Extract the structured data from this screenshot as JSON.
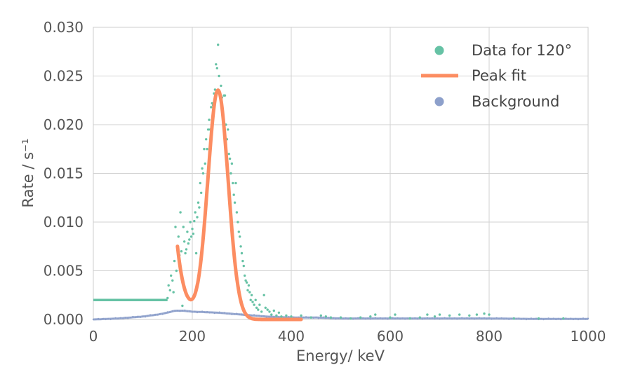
{
  "chart_data": {
    "type": "scatter",
    "xlabel": "Energy/ keV",
    "ylabel": "Rate / s⁻¹",
    "xlim": [
      0,
      1000
    ],
    "ylim": [
      0,
      0.03
    ],
    "xticks": [
      "0",
      "200",
      "400",
      "600",
      "800",
      "1000"
    ],
    "yticks": [
      "0.000",
      "0.005",
      "0.010",
      "0.015",
      "0.020",
      "0.025",
      "0.030"
    ],
    "grid": true,
    "legend_position": "top-right",
    "colors": {
      "data": "#66c2a5",
      "fit": "#fc8d62",
      "background": "#8da0cb",
      "grid": "#d2d2d2",
      "text": "#555555"
    },
    "series": [
      {
        "name": "Data for 120°",
        "kind": "points",
        "threshold_segment": {
          "x": [
            0,
            150
          ],
          "y": 0.002
        },
        "points": [
          [
            150,
            0.0022
          ],
          [
            152,
            0.0035
          ],
          [
            155,
            0.003
          ],
          [
            157,
            0.0045
          ],
          [
            160,
            0.004
          ],
          [
            162,
            0.0028
          ],
          [
            164,
            0.006
          ],
          [
            166,
            0.0095
          ],
          [
            168,
            0.005
          ],
          [
            170,
            0.0075
          ],
          [
            172,
            0.0085
          ],
          [
            174,
            0.0066
          ],
          [
            176,
            0.011
          ],
          [
            178,
            0.007
          ],
          [
            180,
            0.0014
          ],
          [
            182,
            0.0095
          ],
          [
            184,
            0.008
          ],
          [
            186,
            0.0068
          ],
          [
            188,
            0.0072
          ],
          [
            190,
            0.009
          ],
          [
            192,
            0.0078
          ],
          [
            194,
            0.0082
          ],
          [
            196,
            0.01
          ],
          [
            198,
            0.0085
          ],
          [
            200,
            0.0093
          ],
          [
            202,
            0.0088
          ],
          [
            204,
            0.0101
          ],
          [
            206,
            0.011
          ],
          [
            208,
            0.0068
          ],
          [
            210,
            0.0105
          ],
          [
            212,
            0.012
          ],
          [
            214,
            0.0115
          ],
          [
            216,
            0.014
          ],
          [
            218,
            0.013
          ],
          [
            220,
            0.0155
          ],
          [
            222,
            0.015
          ],
          [
            224,
            0.0175
          ],
          [
            226,
            0.016
          ],
          [
            228,
            0.0185
          ],
          [
            230,
            0.0175
          ],
          [
            232,
            0.0195
          ],
          [
            234,
            0.0205
          ],
          [
            236,
            0.0195
          ],
          [
            238,
            0.0218
          ],
          [
            240,
            0.0222
          ],
          [
            242,
            0.022
          ],
          [
            244,
            0.0232
          ],
          [
            246,
            0.0236
          ],
          [
            248,
            0.0262
          ],
          [
            250,
            0.0258
          ],
          [
            252,
            0.0282
          ],
          [
            254,
            0.025
          ],
          [
            256,
            0.023
          ],
          [
            258,
            0.024
          ],
          [
            260,
            0.0228
          ],
          [
            262,
            0.021
          ],
          [
            264,
            0.023
          ],
          [
            266,
            0.023
          ],
          [
            268,
            0.02
          ],
          [
            270,
            0.0185
          ],
          [
            272,
            0.0195
          ],
          [
            274,
            0.017
          ],
          [
            276,
            0.0165
          ],
          [
            278,
            0.015
          ],
          [
            280,
            0.016
          ],
          [
            282,
            0.014
          ],
          [
            284,
            0.0128
          ],
          [
            286,
            0.012
          ],
          [
            288,
            0.014
          ],
          [
            290,
            0.011
          ],
          [
            292,
            0.01
          ],
          [
            294,
            0.009
          ],
          [
            296,
            0.0085
          ],
          [
            298,
            0.0075
          ],
          [
            300,
            0.0068
          ],
          [
            302,
            0.006
          ],
          [
            304,
            0.0055
          ],
          [
            306,
            0.0045
          ],
          [
            308,
            0.004
          ],
          [
            310,
            0.0038
          ],
          [
            312,
            0.003
          ],
          [
            314,
            0.0035
          ],
          [
            316,
            0.0028
          ],
          [
            318,
            0.002
          ],
          [
            320,
            0.0025
          ],
          [
            322,
            0.0018
          ],
          [
            325,
            0.0015
          ],
          [
            328,
            0.002
          ],
          [
            330,
            0.0012
          ],
          [
            333,
            0.001
          ],
          [
            336,
            0.0015
          ],
          [
            340,
            0.0008
          ],
          [
            345,
            0.0025
          ],
          [
            348,
            0.0012
          ],
          [
            352,
            0.001
          ],
          [
            356,
            0.0008
          ],
          [
            360,
            0.0005
          ],
          [
            365,
            0.0009
          ],
          [
            370,
            0.0004
          ],
          [
            375,
            0.0007
          ],
          [
            380,
            0.0003
          ],
          [
            390,
            0.0004
          ],
          [
            400,
            0.0003
          ],
          [
            420,
            0.0004
          ],
          [
            440,
            0.0002
          ],
          [
            460,
            0.0004
          ],
          [
            470,
            0.0003
          ],
          [
            480,
            0.0002
          ],
          [
            500,
            0.0002
          ],
          [
            520,
            0.0001
          ],
          [
            540,
            0.0002
          ],
          [
            560,
            0.0003
          ],
          [
            570,
            0.0005
          ],
          [
            600,
            0.0002
          ],
          [
            610,
            0.0005
          ],
          [
            640,
            0.0001
          ],
          [
            660,
            0.0002
          ],
          [
            675,
            0.0005
          ],
          [
            690,
            0.0003
          ],
          [
            700,
            0.0005
          ],
          [
            720,
            0.0004
          ],
          [
            740,
            0.0005
          ],
          [
            760,
            0.0004
          ],
          [
            775,
            0.0005
          ],
          [
            790,
            0.0006
          ],
          [
            800,
            0.0005
          ],
          [
            850,
            0.0001
          ],
          [
            900,
            0.0001
          ],
          [
            950,
            0.0001
          ]
        ]
      },
      {
        "name": "Peak fit",
        "kind": "line",
        "model": {
          "x_start": 170,
          "x_end": 420,
          "amplitude": 0.0235,
          "center": 252,
          "sigma": 20.5,
          "dip_start": 0.0075,
          "dip_decay": 16
        }
      },
      {
        "name": "Background",
        "kind": "band",
        "profile": [
          [
            0,
            0.0
          ],
          [
            50,
            0.0001
          ],
          [
            100,
            0.0003
          ],
          [
            130,
            0.0005
          ],
          [
            150,
            0.0007
          ],
          [
            165,
            0.0009
          ],
          [
            180,
            0.0009
          ],
          [
            200,
            0.0008
          ],
          [
            250,
            0.0007
          ],
          [
            300,
            0.0005
          ],
          [
            350,
            0.0003
          ],
          [
            400,
            0.0002
          ],
          [
            450,
            0.0002
          ],
          [
            500,
            0.0001
          ],
          [
            600,
            0.0001
          ],
          [
            700,
            0.0001
          ],
          [
            800,
            0.0001
          ],
          [
            900,
            5e-05
          ],
          [
            1000,
            5e-05
          ]
        ]
      }
    ]
  }
}
